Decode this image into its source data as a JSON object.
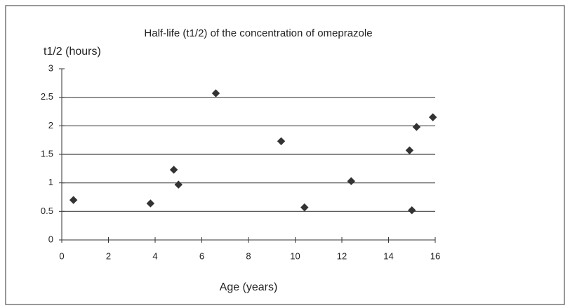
{
  "chart_data": {
    "type": "scatter",
    "title": "Half-life (t1/2) of the concentration of omeprazole",
    "y_label": "t1/2 (hours)",
    "x_label": "Age (years)",
    "x": [
      0.5,
      3.8,
      4.8,
      5.0,
      6.6,
      9.4,
      10.4,
      12.4,
      14.9,
      15.0,
      15.2,
      15.9
    ],
    "values": [
      0.7,
      0.64,
      1.23,
      0.97,
      2.57,
      1.73,
      0.57,
      1.03,
      1.57,
      0.52,
      1.98,
      2.15
    ],
    "color": "#333333",
    "xlim": [
      0,
      16
    ],
    "xticks": [
      0,
      2,
      4,
      6,
      8,
      10,
      12,
      14,
      16
    ],
    "ylim": [
      0,
      3
    ],
    "yticks": [
      0,
      0.5,
      1,
      1.5,
      2,
      2.5,
      3
    ],
    "grid": true
  }
}
